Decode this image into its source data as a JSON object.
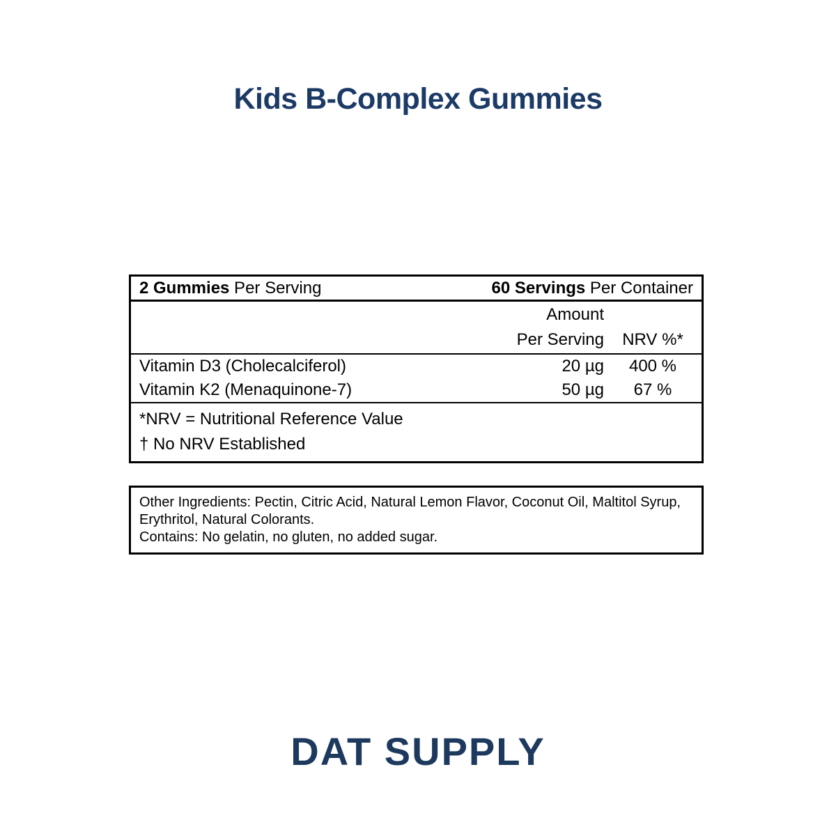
{
  "title": "Kids B-Complex Gummies",
  "facts": {
    "serving_row": {
      "left_bold": "2 Gummies",
      "left_rest": " Per Serving",
      "right_bold": "60 Servings",
      "right_rest": " Per Container"
    },
    "header": {
      "amount_line1": "Amount",
      "amount_line2": "Per Serving",
      "nrv": "NRV %*"
    },
    "rows": [
      {
        "name": "Vitamin D3 (Cholecalciferol)",
        "amount": "20 µg",
        "nrv": "400 %"
      },
      {
        "name": "Vitamin K2 (Menaquinone-7)",
        "amount": "50 µg",
        "nrv": "67 %"
      }
    ],
    "footnotes": [
      "*NRV = Nutritional Reference Value",
      "† No NRV Established"
    ]
  },
  "ingredients_box": {
    "other_ingredients": "Other Ingredients: Pectin, Citric Acid, Natural Lemon Flavor, Coconut Oil, Maltitol Syrup, Erythritol, Natural Colorants.",
    "contains": "Contains: No gelatin, no gluten, no added sugar."
  },
  "brand": {
    "logo_text": "DAT SUPPLY"
  },
  "colors": {
    "title_navy": "#1c3a66",
    "logo_navy": "#1d3a5e",
    "text_black": "#000000",
    "background": "#ffffff"
  }
}
